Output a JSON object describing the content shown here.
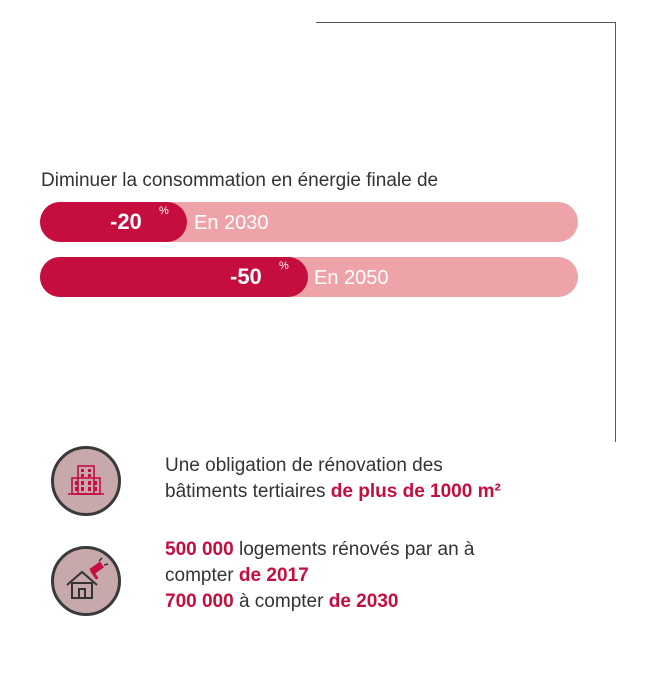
{
  "intro": "Diminuer la consommation en énergie finale de",
  "bars": [
    {
      "value": "-20",
      "unit": "%",
      "label": "En 2030",
      "fraction": 0.2
    },
    {
      "value": "-50",
      "unit": "%",
      "label": "En 2050",
      "fraction": 0.5
    }
  ],
  "items": [
    {
      "icon": "office-building-icon",
      "line1": "Une obligation de rénovation des",
      "line2_plain": "bâtiments tertiaires ",
      "line2_bold": "de plus de 1000 m²"
    },
    {
      "icon": "house-renovation-icon",
      "line1_bold": "500 000",
      "line1_plain": " logements rénovés par an à",
      "line2_plain": "compter ",
      "line2_bold": "de 2017",
      "line3_bold1": "700 000",
      "line3_plain": " à compter ",
      "line3_bold2": "de 2030"
    }
  ],
  "colors": {
    "accent": "#c50d3e",
    "track": "#eda3a7",
    "icon_bg": "#c7a9ac"
  }
}
